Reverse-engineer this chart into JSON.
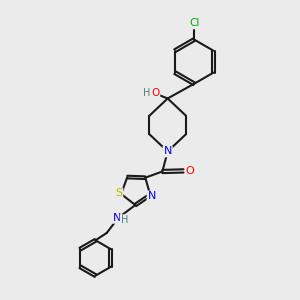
{
  "bg_color": "#ebebeb",
  "bond_color": "#1a1a1a",
  "N_color": "#0000ff",
  "O_color": "#ff0000",
  "S_color": "#b8b800",
  "Cl_color": "#00aa00",
  "H_color": "#4a8080",
  "linewidth": 1.5,
  "dbo": 0.055,
  "xlim": [
    0,
    10
  ],
  "ylim": [
    0,
    10
  ]
}
